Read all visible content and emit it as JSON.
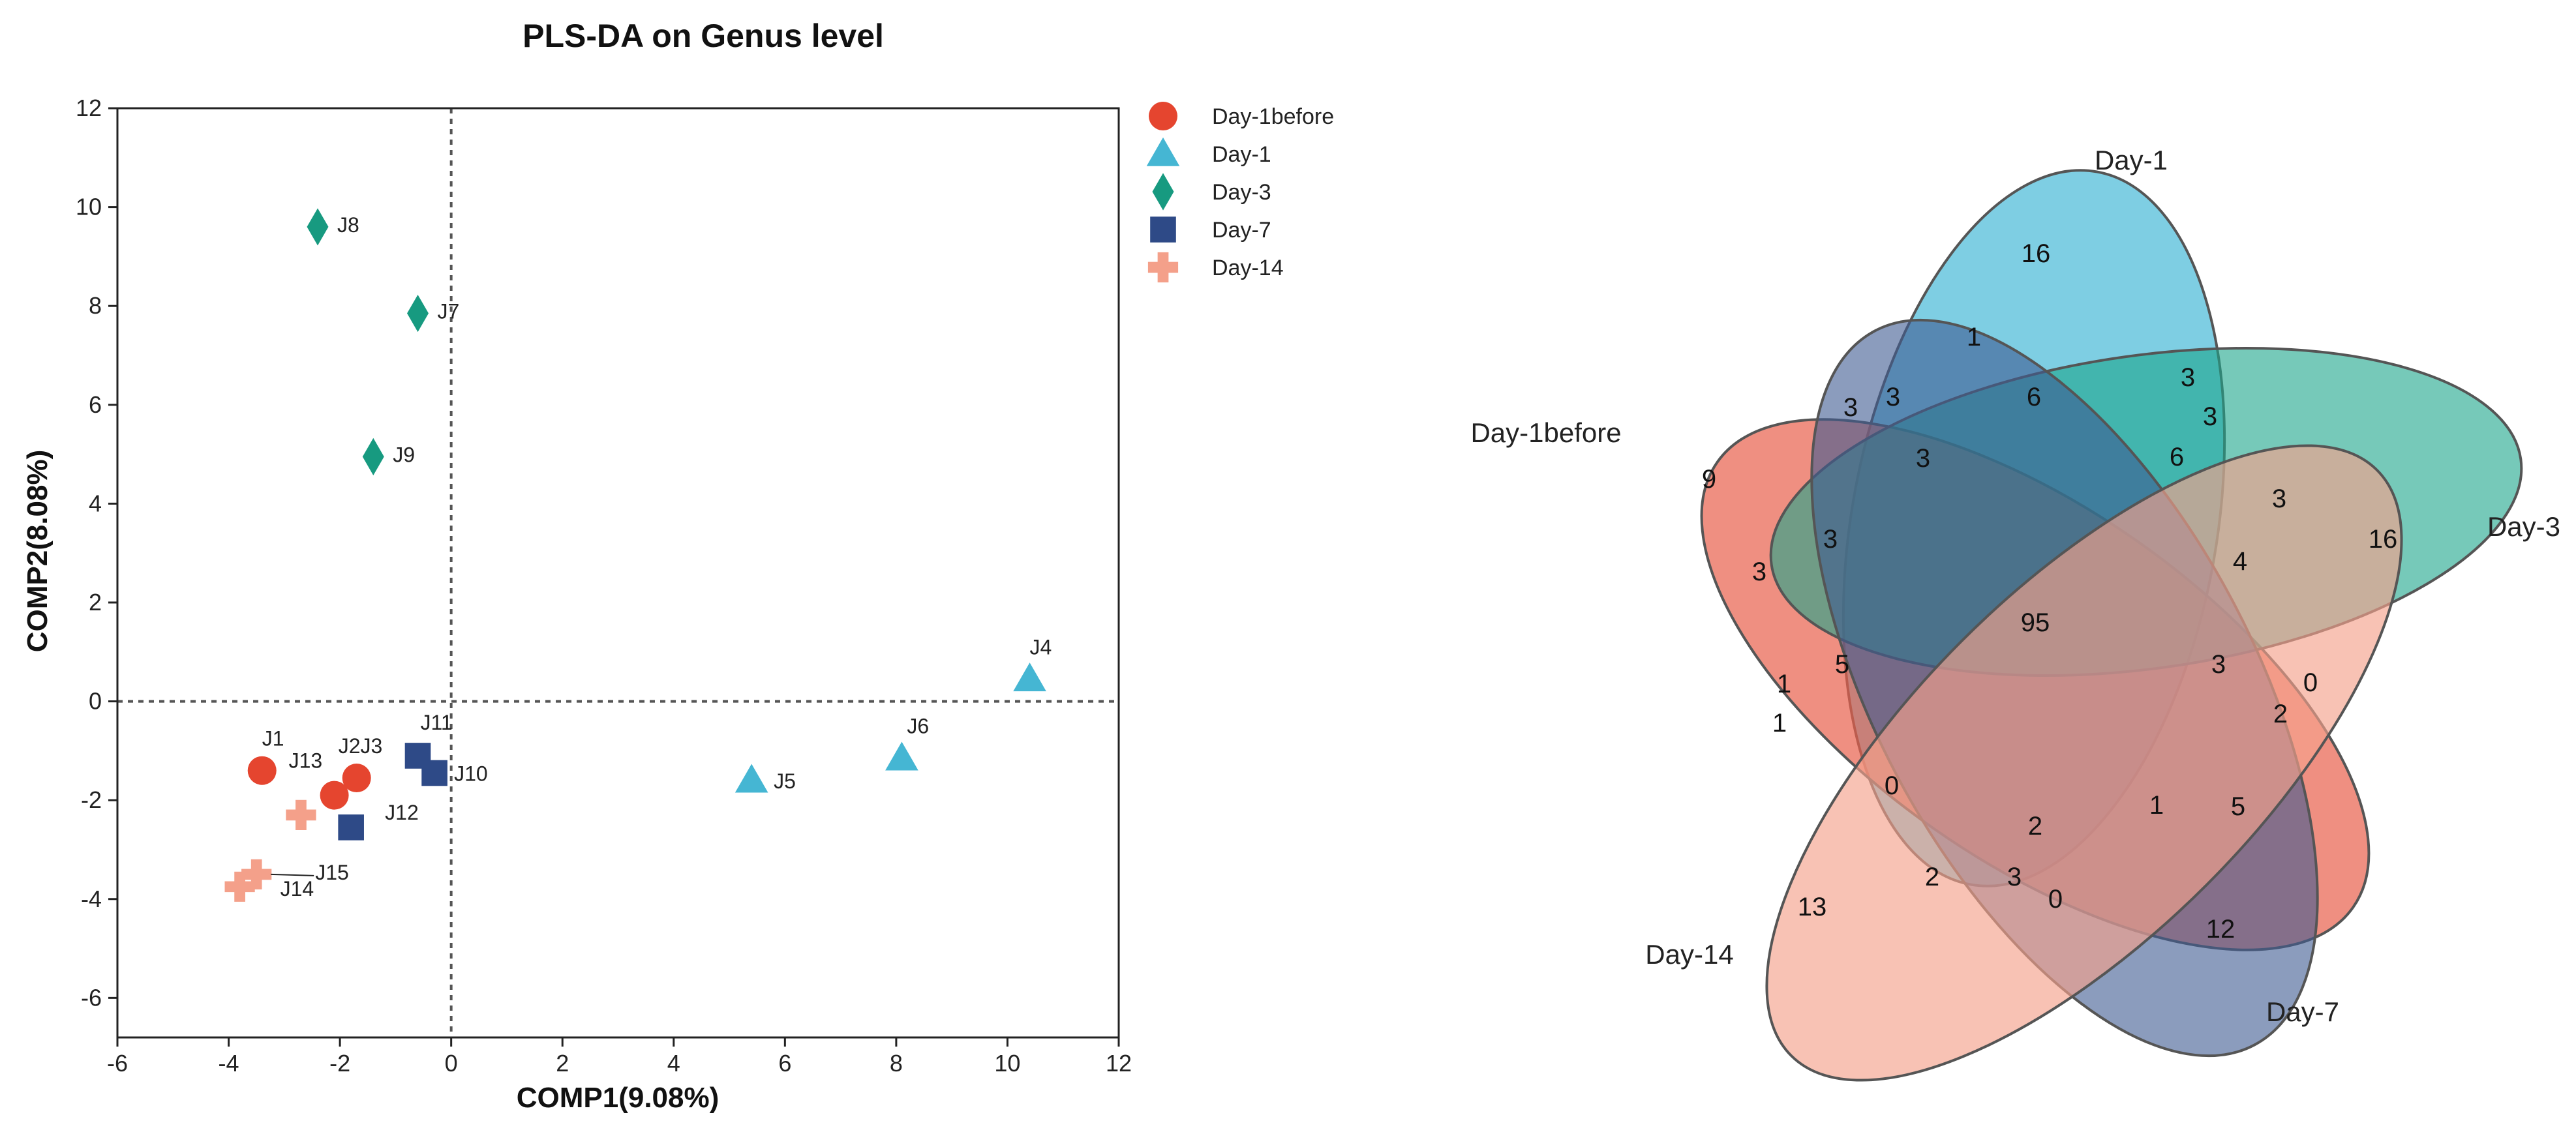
{
  "chart_data": [
    {
      "type": "scatter",
      "title": "PLS-DA on Genus level",
      "xlabel": "COMP1(9.08%)",
      "ylabel": "COMP2(8.08%)",
      "xlim": [
        -6,
        12
      ],
      "ylim": [
        -6.8,
        12
      ],
      "xticks": [
        -6,
        -4,
        -2,
        0,
        2,
        4,
        6,
        8,
        10,
        12
      ],
      "yticks": [
        -6,
        -4,
        -2,
        0,
        2,
        4,
        6,
        8,
        10,
        12
      ],
      "reference_lines": {
        "x": 0,
        "y": 0,
        "style": "dashed"
      },
      "legend_position": "top-right outside",
      "series": [
        {
          "name": "Day-1before",
          "marker": "circle",
          "color": "#e5452f",
          "points": [
            {
              "label": "J1",
              "x": -3.4,
              "y": -1.4
            },
            {
              "label": "J13",
              "x": -2.1,
              "y": -1.9
            },
            {
              "label": "J2J3",
              "x": -1.7,
              "y": -1.55
            }
          ]
        },
        {
          "name": "Day-1",
          "marker": "triangle",
          "color": "#45b6d3",
          "points": [
            {
              "label": "J4",
              "x": 10.4,
              "y": 0.45
            },
            {
              "label": "J6",
              "x": 8.1,
              "y": -1.15
            },
            {
              "label": "J5",
              "x": 5.4,
              "y": -1.6
            }
          ]
        },
        {
          "name": "Day-3",
          "marker": "diamond",
          "color": "#179a80",
          "points": [
            {
              "label": "J8",
              "x": -2.4,
              "y": 9.6
            },
            {
              "label": "J7",
              "x": -0.6,
              "y": 7.85
            },
            {
              "label": "J9",
              "x": -1.4,
              "y": 4.95
            }
          ]
        },
        {
          "name": "Day-7",
          "marker": "square",
          "color": "#2e4a87",
          "points": [
            {
              "label": "J11",
              "x": -0.6,
              "y": -1.1
            },
            {
              "label": "J10",
              "x": -0.3,
              "y": -1.45
            },
            {
              "label": "J12",
              "x": -1.8,
              "y": -2.55
            }
          ]
        },
        {
          "name": "Day-14",
          "marker": "cross",
          "color": "#f4a08a",
          "points": [
            {
              "label": "",
              "x": -2.7,
              "y": -2.3
            },
            {
              "label": "J15",
              "x": -3.5,
              "y": -3.5
            },
            {
              "label": "J14",
              "x": -3.8,
              "y": -3.75
            }
          ]
        }
      ]
    },
    {
      "type": "venn",
      "sets": [
        {
          "name": "Day-1before",
          "color": "#e8604c"
        },
        {
          "name": "Day-1",
          "color": "#5ec2dc"
        },
        {
          "name": "Day-3",
          "color": "#1aa58a"
        },
        {
          "name": "Day-7",
          "color": "#3e5a91"
        },
        {
          "name": "Day-14",
          "color": "#f4a18c"
        }
      ],
      "region_counts": [
        "16",
        "1",
        "3",
        "3",
        "6",
        "3",
        "3",
        "9",
        "3",
        "6",
        "3",
        "16",
        "3",
        "3",
        "4",
        "95",
        "5",
        "1",
        "3",
        "0",
        "1",
        "2",
        "0",
        "2",
        "1",
        "5",
        "13",
        "2",
        "3",
        "0",
        "12"
      ]
    }
  ]
}
